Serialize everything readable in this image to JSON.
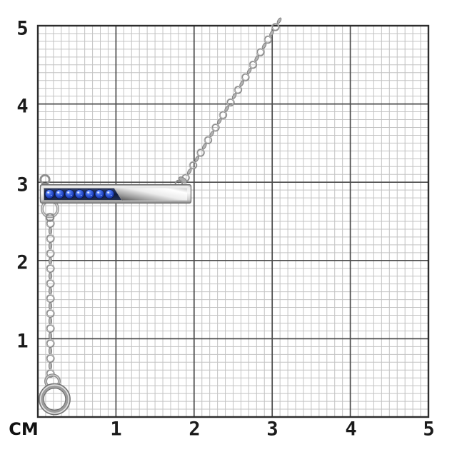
{
  "figure": {
    "unit_label": "СМ",
    "x_axis_labels": [
      "1",
      "2",
      "3",
      "4",
      "5"
    ],
    "y_axis_labels": [
      "5",
      "4",
      "3",
      "2",
      "1"
    ],
    "grid": {
      "range_cm": 5,
      "minor_divisions_per_cm": 10
    }
  },
  "product": {
    "kind": "bar-pendant-necklace",
    "stones": {
      "count": 7,
      "shape": "round",
      "color_hex": "#2a55d8"
    },
    "metal_color_hex": "#d9d9d9",
    "chain_style": "rolo",
    "pendant_bar_length_cm": 1.9
  },
  "colors": {
    "background": "#ffffff",
    "grid_minor": "#c3c3c3",
    "grid_major": "#4b4b4b",
    "grid_border": "#2c2c2c",
    "label_text": "#1b1b1b",
    "stone_channel": "#0e1c3e",
    "chain_metal": "#8b8b8b"
  }
}
